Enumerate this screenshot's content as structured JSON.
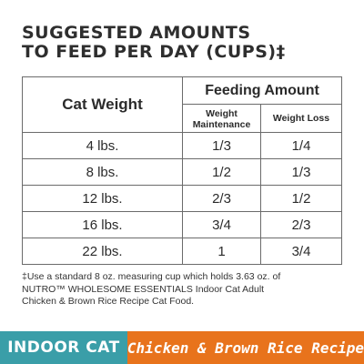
{
  "heading": {
    "line1": "SUGGESTED AMOUNTS",
    "line2": "TO FEED PER DAY (CUPS)‡"
  },
  "table": {
    "col_cat_weight": "Cat Weight",
    "col_feeding_amount": "Feeding Amount",
    "sub_weight_maintenance_line1": "Weight",
    "sub_weight_maintenance_line2": "Maintenance",
    "sub_weight_loss": "Weight Loss",
    "rows": [
      {
        "weight": "4 lbs.",
        "maintenance": "1/3",
        "loss": "1/4"
      },
      {
        "weight": "8 lbs.",
        "maintenance": "1/2",
        "loss": "1/3"
      },
      {
        "weight": "12 lbs.",
        "maintenance": "2/3",
        "loss": "1/2"
      },
      {
        "weight": "16 lbs.",
        "maintenance": "3/4",
        "loss": "2/3"
      },
      {
        "weight": "22 lbs.",
        "maintenance": "1",
        "loss": "3/4"
      }
    ]
  },
  "footnote": {
    "line1": "‡Use a standard 8 oz. measuring cup which holds 3.63 oz. of",
    "line2": "NUTRO™ WHOLESOME ESSENTIALS Indoor Cat Adult",
    "line3": "Chicken & Brown Rice Recipe Cat Food."
  },
  "banner": {
    "left": "INDOOR CAT",
    "right": "Chicken & Brown Rice Recipe",
    "left_color": "#3a9ea8",
    "right_color": "#e8731c"
  }
}
